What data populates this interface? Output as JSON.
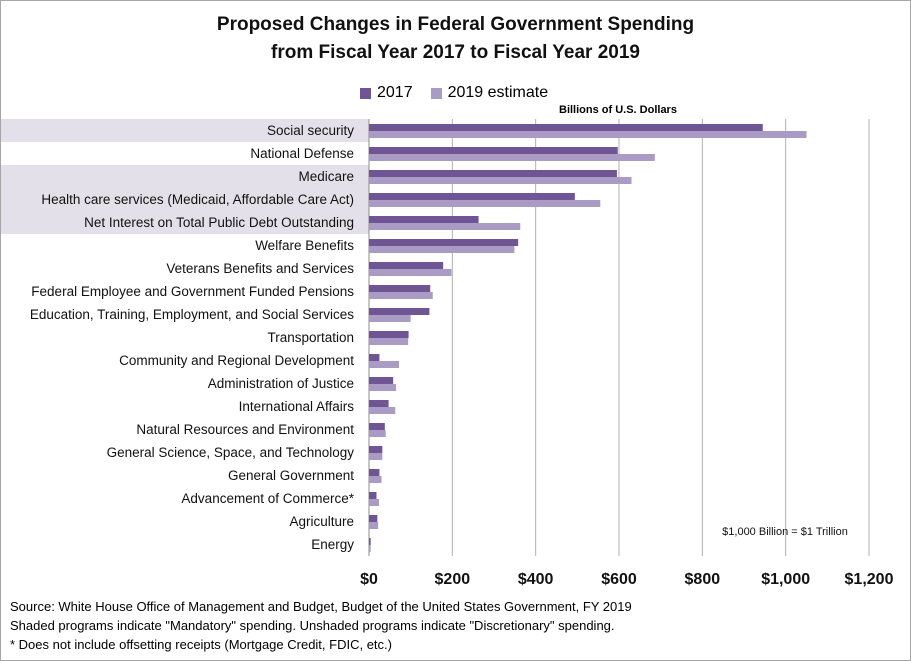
{
  "colors": {
    "series_2017": "#6f5593",
    "series_2019": "#a99bc4",
    "mandatory_shade": "#e3e0e9",
    "gridline": "#b0b0b0"
  },
  "chart_data": {
    "type": "bar",
    "orientation": "horizontal",
    "title_line1": "Proposed Changes in Federal Government Spending",
    "title_line2": "from Fiscal Year 2017 to Fiscal Year 2019",
    "unit_label": "Billions of U.S. Dollars",
    "annotation": "$1,000 Billion = $1 Trillion",
    "xlim": [
      0,
      1200
    ],
    "xticks": [
      "$0",
      "$200",
      "$400",
      "$600",
      "$800",
      "$1,000",
      "$1,200"
    ],
    "xtick_values": [
      0,
      200,
      400,
      600,
      800,
      1000,
      1200
    ],
    "grid": "vertical",
    "legend_position": "top",
    "categories": [
      "Social security",
      "National Defense",
      "Medicare",
      "Health care services (Medicaid, Affordable Care Act)",
      "Net Interest on Total Public Debt Outstanding",
      "Welfare Benefits",
      "Veterans Benefits and Services",
      "Federal Employee and Government Funded Pensions",
      "Education, Training, Employment, and Social Services",
      "Transportation",
      "Community and Regional Development",
      "Administration of Justice",
      "International Affairs",
      "Natural Resources and Environment",
      "General Science, Space, and Technology",
      "General Government",
      "Advancement of Commerce*",
      "Agriculture",
      "Energy"
    ],
    "mandatory": [
      true,
      false,
      true,
      true,
      true,
      false,
      false,
      false,
      false,
      false,
      false,
      false,
      false,
      false,
      false,
      false,
      false,
      false,
      false
    ],
    "series": [
      {
        "name": "2017",
        "values": [
          945,
          597,
          595,
          494,
          263,
          358,
          178,
          147,
          145,
          95,
          25,
          58,
          47,
          38,
          32,
          25,
          18,
          20,
          4
        ]
      },
      {
        "name": "2019 estimate",
        "values": [
          1050,
          686,
          630,
          555,
          363,
          349,
          198,
          153,
          100,
          94,
          72,
          65,
          63,
          40,
          32,
          30,
          24,
          22,
          4
        ]
      }
    ]
  },
  "footnotes": {
    "source": "Source: White House Office of Management and Budget, Budget of the United States Government,  FY 2019",
    "shading": "Shaded programs indicate \"Mandatory\"  spending. Unshaded programs indicate \"Discretionary\" spending.",
    "asterisk": "* Does not include offsetting receipts (Mortgage Credit, FDIC, etc.)"
  }
}
